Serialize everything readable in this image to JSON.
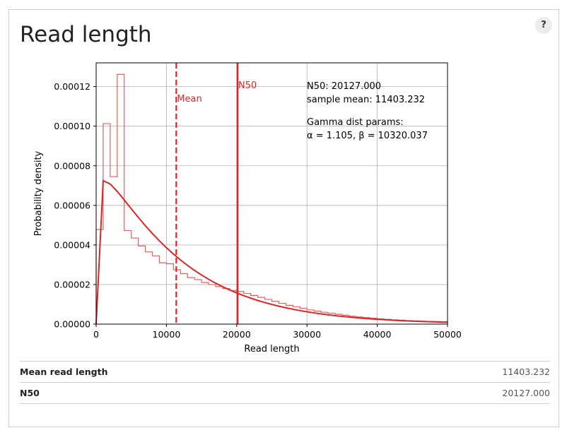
{
  "panel": {
    "title": "Read length",
    "help_label": "?"
  },
  "chart_data": {
    "type": "histogram",
    "xlabel": "Read length",
    "ylabel": "Probability density",
    "xlim": [
      0,
      50000
    ],
    "ylim": [
      0,
      0.000132
    ],
    "x_ticks": [
      0,
      10000,
      20000,
      30000,
      40000,
      50000
    ],
    "x_tick_labels": [
      "0",
      "10000",
      "20000",
      "30000",
      "40000",
      "50000"
    ],
    "y_ticks": [
      0,
      2e-05,
      4e-05,
      6e-05,
      8e-05,
      0.0001,
      0.00012
    ],
    "y_tick_labels": [
      "0.00000",
      "0.00002",
      "0.00004",
      "0.00006",
      "0.00008",
      "0.00010",
      "0.00012"
    ],
    "grid": true,
    "histogram": {
      "bin_width": 1000,
      "bin_edges_start": 0,
      "densities": [
        4.78e-05,
        0.0001013,
        7.45e-05,
        0.0001262,
        4.73e-05,
        4.35e-05,
        3.95e-05,
        3.65e-05,
        3.45e-05,
        3.1e-05,
        3.05e-05,
        2.75e-05,
        2.55e-05,
        2.35e-05,
        2.25e-05,
        2.1e-05,
        2e-05,
        1.9e-05,
        1.8e-05,
        1.7e-05,
        1.65e-05,
        1.55e-05,
        1.45e-05,
        1.35e-05,
        1.25e-05,
        1.15e-05,
        1.05e-05,
        9.5e-06,
        8.8e-06,
        8e-06,
        7.2e-06,
        6.6e-06,
        6e-06,
        5.5e-06,
        5e-06,
        4.5e-06,
        4e-06,
        3.6e-06,
        3.3e-06,
        3e-06,
        2.7e-06,
        2.4e-06,
        2.2e-06,
        2e-06,
        1.8e-06,
        1.6e-06,
        1.5e-06,
        1.4e-06,
        1.3e-06,
        1.2e-06
      ],
      "color": "#e06060"
    },
    "gamma_fit": {
      "alpha": 1.105,
      "beta": 10320.037,
      "color": "#d62728"
    },
    "vlines": [
      {
        "x": 11403.232,
        "label": "Mean",
        "style": "dashed",
        "color": "#d62728"
      },
      {
        "x": 20127.0,
        "label": "N50",
        "style": "solid",
        "color": "#d62728"
      }
    ],
    "annotation_lines": [
      "N50: 20127.000",
      "sample mean: 11403.232",
      "",
      "Gamma dist params:",
      "α = 1.105,  β = 10320.037"
    ]
  },
  "stats": [
    {
      "label": "Mean read length",
      "value": "11403.232"
    },
    {
      "label": "N50",
      "value": "20127.000"
    }
  ]
}
